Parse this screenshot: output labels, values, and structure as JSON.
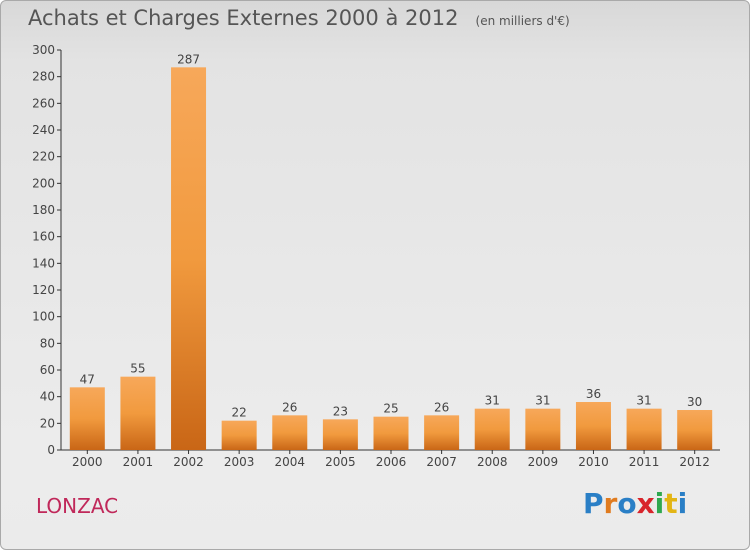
{
  "header": {
    "title": "Achats et Charges Externes 2000 à 2012",
    "unit": "(en milliers d'€)"
  },
  "footer": {
    "commune": "LONZAC",
    "logo": "Proxiti",
    "logo_colors": [
      "#2a7fc6",
      "#e07b1f",
      "#2a7fc6",
      "#d8242b",
      "#2fa84f",
      "#e3b515",
      "#2a7fc6"
    ]
  },
  "colors": {
    "bar": "#f19a3e",
    "bar_top": "#f7a85a",
    "bar_bottom": "#c96616",
    "axis": "#333333",
    "grid": "#bdbdbd",
    "label": "#444444"
  },
  "chart_data": {
    "type": "bar",
    "title": "Achats et Charges Externes 2000 à 2012",
    "subtitle": "(en milliers d'€)",
    "categories": [
      "2000",
      "2001",
      "2002",
      "2003",
      "2004",
      "2005",
      "2006",
      "2007",
      "2008",
      "2009",
      "2010",
      "2011",
      "2012"
    ],
    "values": [
      47,
      55,
      287,
      22,
      26,
      23,
      25,
      26,
      31,
      31,
      36,
      31,
      30
    ],
    "ylim": [
      0,
      300
    ],
    "yticks": [
      0,
      20,
      40,
      60,
      80,
      100,
      120,
      140,
      160,
      180,
      200,
      220,
      240,
      260,
      280,
      300
    ],
    "grid": false,
    "data_labels": true
  }
}
